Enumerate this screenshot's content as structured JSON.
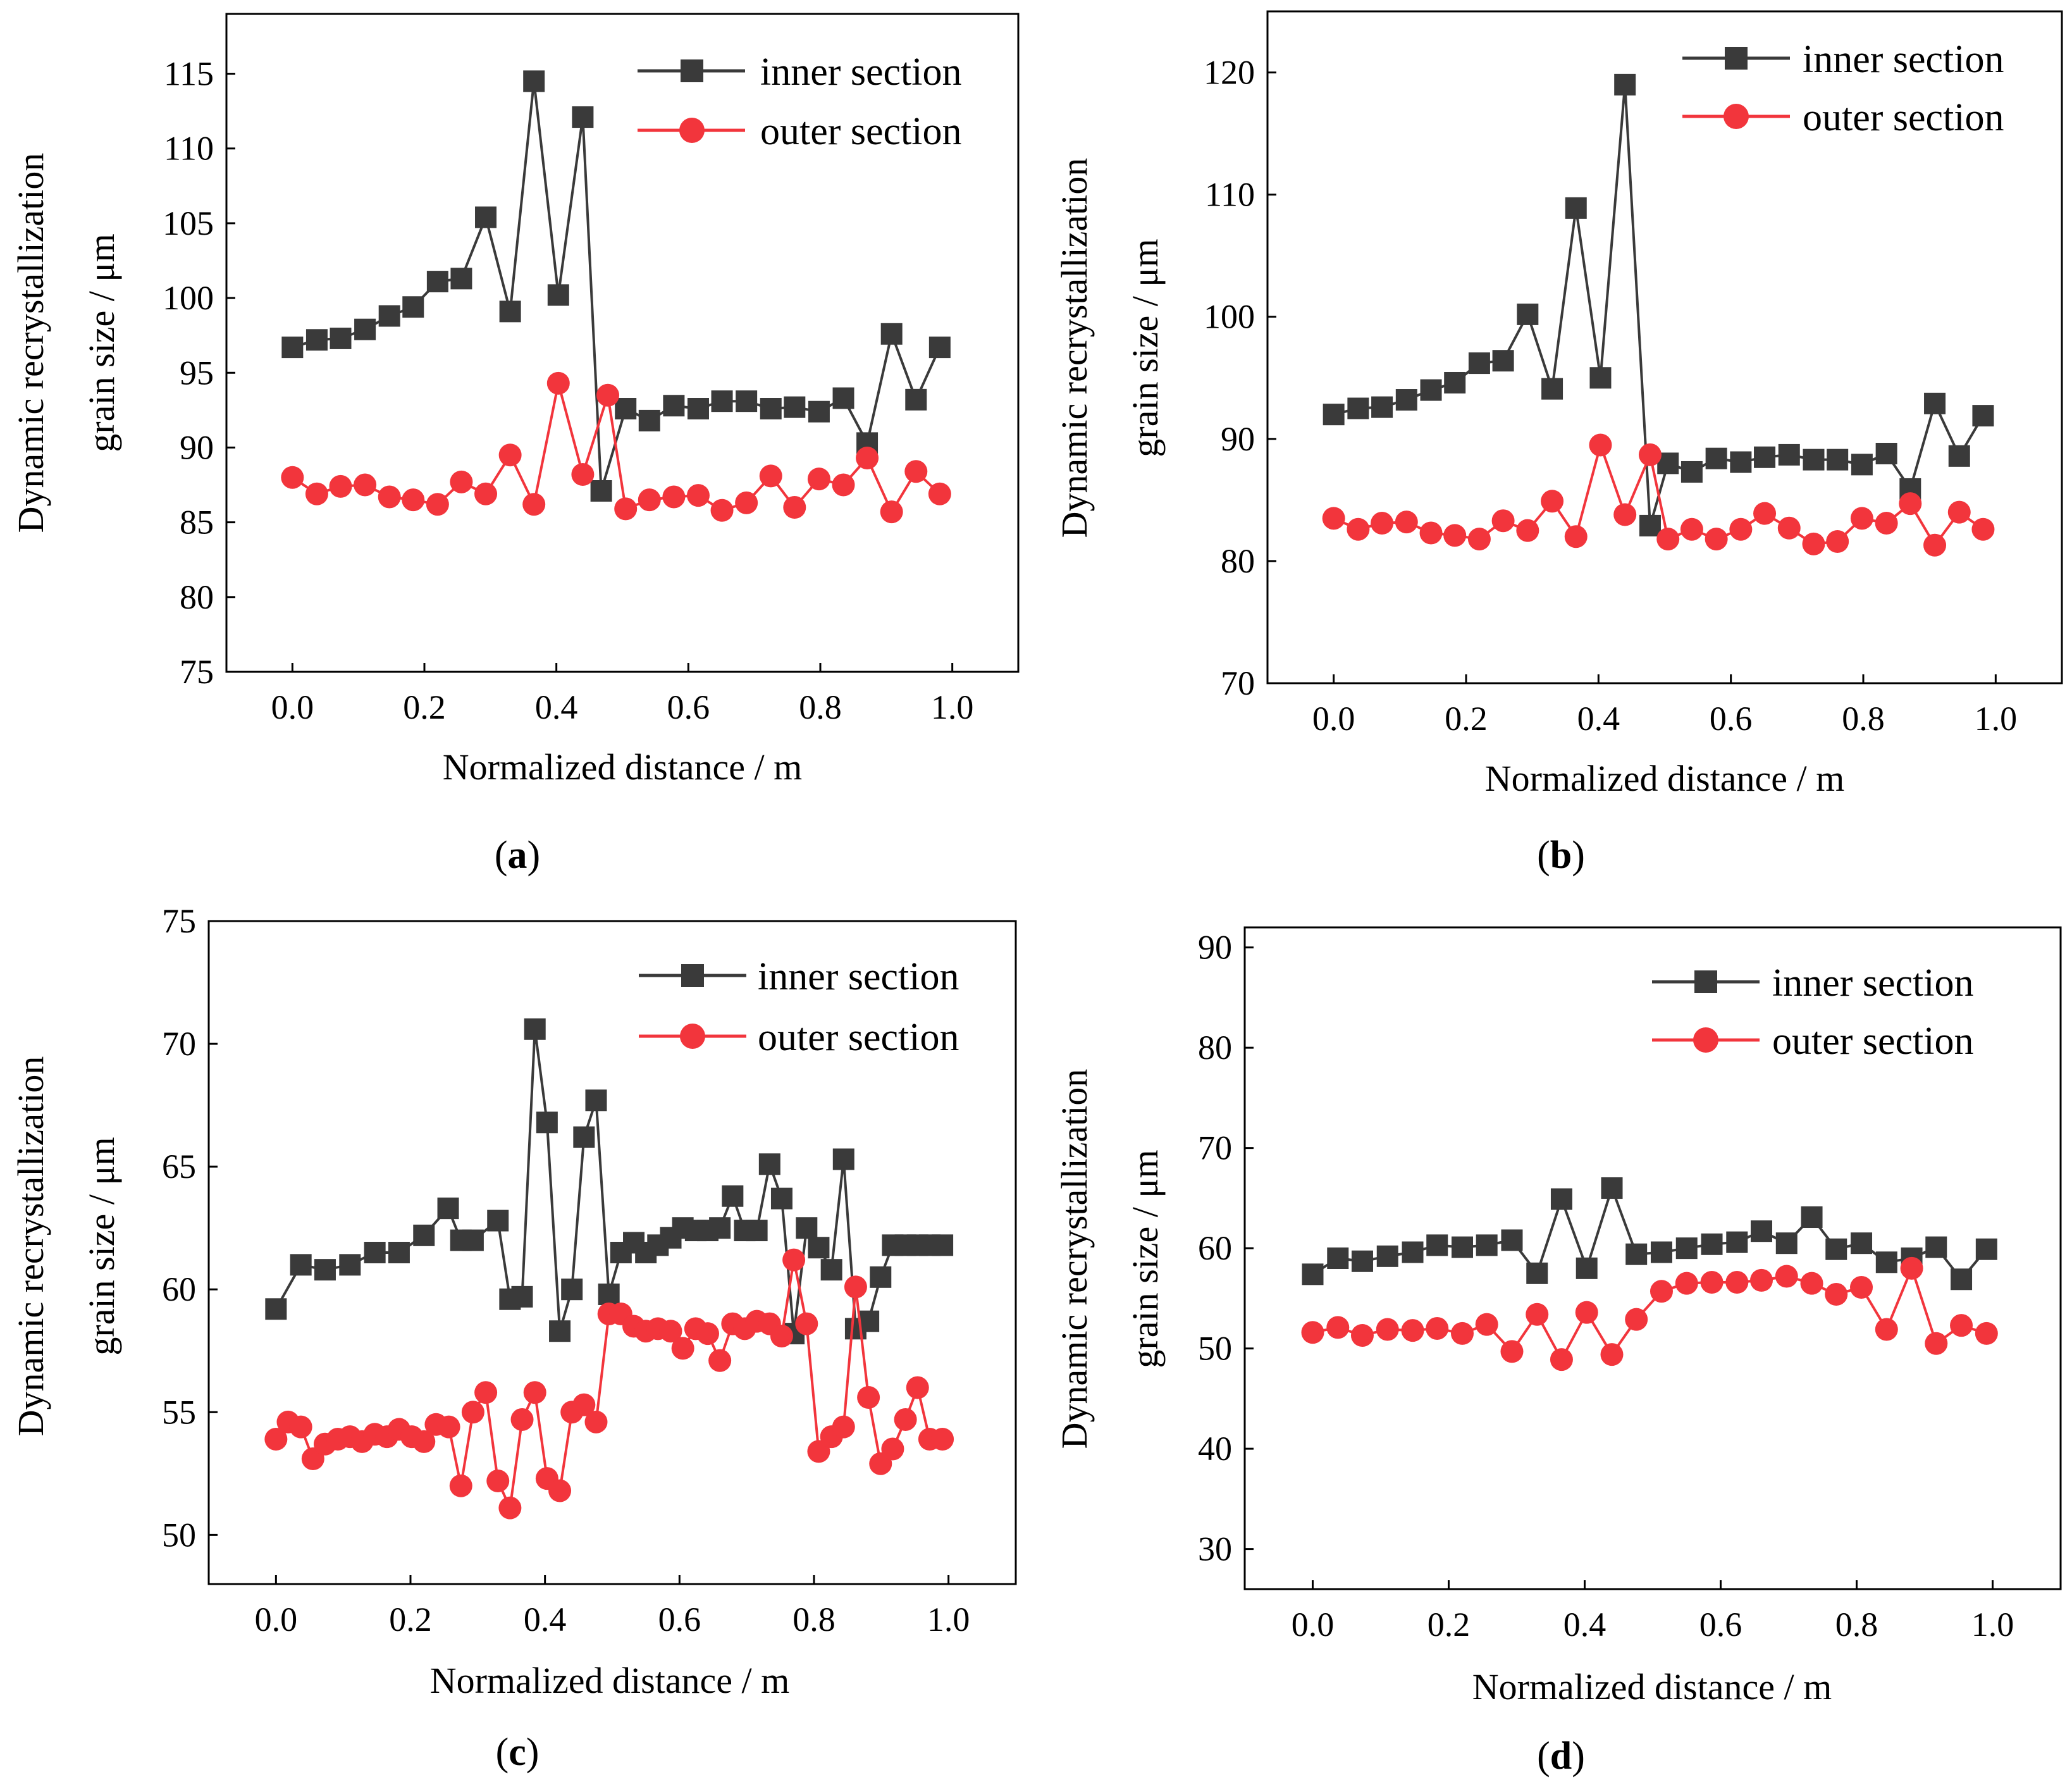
{
  "figure": {
    "colors": {
      "inner": "#3a3a3a",
      "outer": "#f2353c",
      "axis": "#000000"
    }
  },
  "chart_data": [
    {
      "panel_label": "(a)",
      "panel_letter": "a",
      "type": "line",
      "xlabel": "Normalized distance / m",
      "ylabel_line1": "Dynamic recrystallization",
      "ylabel_line2": "grain size / μm",
      "xlim": [
        -0.1,
        1.1
      ],
      "ylim": [
        75,
        119
      ],
      "xticks": [
        0.0,
        0.2,
        0.4,
        0.6,
        0.8,
        1.0
      ],
      "xtick_labels": [
        "0.0",
        "0.2",
        "0.4",
        "0.6",
        "0.8",
        "1.0"
      ],
      "yticks": [
        75,
        80,
        85,
        90,
        95,
        100,
        105,
        110,
        115
      ],
      "ytick_labels": [
        "75",
        "80",
        "85",
        "90",
        "95",
        "100",
        "105",
        "110",
        "115"
      ],
      "legend_position": "top-right",
      "series": [
        {
          "name": "inner section",
          "marker": "square",
          "x": [
            0.0,
            0.037,
            0.073,
            0.11,
            0.147,
            0.183,
            0.22,
            0.256,
            0.293,
            0.33,
            0.366,
            0.403,
            0.44,
            0.468,
            0.505,
            0.541,
            0.578,
            0.615,
            0.651,
            0.688,
            0.725,
            0.761,
            0.798,
            0.835,
            0.871,
            0.908,
            0.945,
            0.981
          ],
          "y": [
            96.7,
            97.2,
            97.3,
            97.9,
            98.8,
            99.4,
            101.1,
            101.3,
            105.4,
            99.1,
            114.5,
            100.2,
            112.1,
            87.1,
            92.6,
            91.8,
            92.8,
            92.6,
            93.1,
            93.1,
            92.6,
            92.7,
            92.4,
            93.3,
            90.3,
            97.6,
            93.2,
            96.7
          ]
        },
        {
          "name": "outer section",
          "marker": "circle",
          "x": [
            0.0,
            0.037,
            0.073,
            0.11,
            0.147,
            0.183,
            0.22,
            0.256,
            0.293,
            0.33,
            0.366,
            0.403,
            0.44,
            0.478,
            0.505,
            0.541,
            0.578,
            0.615,
            0.651,
            0.688,
            0.725,
            0.761,
            0.798,
            0.835,
            0.871,
            0.908,
            0.945,
            0.981
          ],
          "y": [
            88.0,
            86.9,
            87.4,
            87.5,
            86.7,
            86.5,
            86.2,
            87.7,
            86.9,
            89.5,
            86.2,
            94.3,
            88.2,
            93.5,
            85.9,
            86.5,
            86.7,
            86.8,
            85.8,
            86.3,
            88.1,
            86.0,
            87.9,
            87.5,
            89.3,
            85.7,
            88.4,
            86.9
          ]
        }
      ]
    },
    {
      "panel_label": "(b)",
      "panel_letter": "b",
      "type": "line",
      "xlabel": "Normalized distance / m",
      "ylabel_line1": "Dynamic recrystallization",
      "ylabel_line2": "grain size / μm",
      "xlim": [
        -0.1,
        1.1
      ],
      "ylim": [
        70,
        125
      ],
      "xticks": [
        0.0,
        0.2,
        0.4,
        0.6,
        0.8,
        1.0
      ],
      "xtick_labels": [
        "0.0",
        "0.2",
        "0.4",
        "0.6",
        "0.8",
        "1.0"
      ],
      "yticks": [
        70,
        80,
        90,
        100,
        110,
        120
      ],
      "ytick_labels": [
        "70",
        "80",
        "90",
        "100",
        "110",
        "120"
      ],
      "legend_position": "top-right",
      "series": [
        {
          "name": "inner section",
          "marker": "square",
          "x": [
            0.0,
            0.037,
            0.073,
            0.11,
            0.147,
            0.183,
            0.22,
            0.256,
            0.293,
            0.33,
            0.366,
            0.403,
            0.44,
            0.478,
            0.505,
            0.541,
            0.578,
            0.615,
            0.651,
            0.688,
            0.725,
            0.761,
            0.798,
            0.835,
            0.871,
            0.908,
            0.945,
            0.981
          ],
          "y": [
            92.0,
            92.5,
            92.6,
            93.2,
            94.0,
            94.6,
            96.2,
            96.4,
            100.2,
            94.1,
            108.9,
            95.0,
            119.0,
            82.9,
            88.0,
            87.3,
            88.4,
            88.1,
            88.5,
            88.7,
            88.3,
            88.3,
            87.9,
            88.8,
            85.9,
            92.9,
            88.6,
            91.9
          ]
        },
        {
          "name": "outer section",
          "marker": "circle",
          "x": [
            0.0,
            0.037,
            0.073,
            0.11,
            0.147,
            0.183,
            0.22,
            0.256,
            0.293,
            0.33,
            0.366,
            0.403,
            0.44,
            0.478,
            0.505,
            0.541,
            0.578,
            0.615,
            0.651,
            0.688,
            0.725,
            0.761,
            0.798,
            0.835,
            0.871,
            0.908,
            0.945,
            0.981
          ],
          "y": [
            83.5,
            82.6,
            83.1,
            83.2,
            82.3,
            82.1,
            81.8,
            83.3,
            82.5,
            84.9,
            82.0,
            89.5,
            83.8,
            88.7,
            81.8,
            82.6,
            81.8,
            82.6,
            83.9,
            82.7,
            81.4,
            81.6,
            83.5,
            83.1,
            84.7,
            81.3,
            84.0,
            82.6
          ]
        }
      ]
    },
    {
      "panel_label": "(c)",
      "panel_letter": "c",
      "type": "line",
      "xlabel": "Normalized distance / m",
      "ylabel_line1": "Dynamic recrystallization",
      "ylabel_line2": "grain size / μm",
      "xlim": [
        -0.1,
        1.1
      ],
      "ylim": [
        48,
        75
      ],
      "xticks": [
        0.0,
        0.2,
        0.4,
        0.6,
        0.8,
        1.0
      ],
      "xtick_labels": [
        "0.0",
        "0.2",
        "0.4",
        "0.6",
        "0.8",
        "1.0"
      ],
      "yticks": [
        50,
        55,
        60,
        65,
        70,
        75
      ],
      "ytick_labels": [
        "50",
        "55",
        "60",
        "65",
        "70",
        "75"
      ],
      "legend_position": "top-right",
      "series": [
        {
          "name": "inner section",
          "marker": "square",
          "x": [
            0.0,
            0.037,
            0.073,
            0.11,
            0.147,
            0.183,
            0.22,
            0.256,
            0.275,
            0.293,
            0.33,
            0.348,
            0.366,
            0.385,
            0.403,
            0.422,
            0.44,
            0.458,
            0.476,
            0.495,
            0.513,
            0.532,
            0.55,
            0.568,
            0.587,
            0.605,
            0.624,
            0.642,
            0.66,
            0.679,
            0.697,
            0.715,
            0.734,
            0.752,
            0.77,
            0.789,
            0.807,
            0.826,
            0.844,
            0.862,
            0.881,
            0.899,
            0.917,
            0.936,
            0.954,
            0.972,
            0.991
          ],
          "y": [
            59.2,
            61.0,
            60.8,
            61.0,
            61.5,
            61.5,
            62.2,
            63.3,
            62.0,
            62.0,
            62.8,
            59.6,
            59.7,
            70.6,
            66.8,
            58.3,
            60.0,
            66.2,
            67.7,
            59.8,
            61.5,
            61.9,
            61.5,
            61.8,
            62.1,
            62.5,
            62.4,
            62.4,
            62.5,
            63.8,
            62.4,
            62.4,
            65.1,
            63.7,
            58.2,
            62.5,
            61.7,
            60.8,
            65.3,
            58.4,
            58.7,
            60.5,
            61.8,
            61.8,
            61.8,
            61.8,
            61.8
          ]
        },
        {
          "name": "outer section",
          "marker": "circle",
          "x": [
            0.0,
            0.018,
            0.037,
            0.055,
            0.073,
            0.092,
            0.11,
            0.128,
            0.147,
            0.165,
            0.183,
            0.202,
            0.22,
            0.238,
            0.257,
            0.275,
            0.293,
            0.312,
            0.33,
            0.348,
            0.366,
            0.385,
            0.403,
            0.422,
            0.44,
            0.458,
            0.476,
            0.495,
            0.513,
            0.532,
            0.55,
            0.568,
            0.587,
            0.605,
            0.624,
            0.642,
            0.66,
            0.679,
            0.697,
            0.715,
            0.734,
            0.752,
            0.77,
            0.789,
            0.807,
            0.826,
            0.844,
            0.862,
            0.881,
            0.899,
            0.917,
            0.936,
            0.954,
            0.972,
            0.991
          ],
          "y": [
            53.9,
            54.6,
            54.4,
            53.1,
            53.7,
            53.9,
            54.0,
            53.8,
            54.1,
            54.0,
            54.3,
            54.0,
            53.8,
            54.5,
            54.4,
            52.0,
            55.0,
            55.8,
            52.2,
            51.1,
            54.7,
            55.8,
            52.3,
            51.8,
            55.0,
            55.3,
            54.6,
            59.0,
            59.0,
            58.5,
            58.3,
            58.4,
            58.3,
            57.6,
            58.4,
            58.2,
            57.1,
            58.6,
            58.4,
            58.7,
            58.6,
            58.1,
            61.2,
            58.6,
            53.4,
            54.0,
            54.4,
            60.1,
            55.6,
            52.9,
            53.5,
            54.7,
            56.0,
            53.9,
            53.9
          ]
        }
      ]
    },
    {
      "panel_label": "(d)",
      "panel_letter": "d",
      "type": "line",
      "xlabel": "Normalized distance / m",
      "ylabel_line1": "Dynamic recrystallization",
      "ylabel_line2": "grain size / μm",
      "xlim": [
        -0.1,
        1.1
      ],
      "ylim": [
        26,
        92
      ],
      "xticks": [
        0.0,
        0.2,
        0.4,
        0.6,
        0.8,
        1.0
      ],
      "xtick_labels": [
        "0.0",
        "0.2",
        "0.4",
        "0.6",
        "0.8",
        "1.0"
      ],
      "yticks": [
        30,
        40,
        50,
        60,
        70,
        80,
        90
      ],
      "ytick_labels": [
        "30",
        "40",
        "50",
        "60",
        "70",
        "80",
        "90"
      ],
      "legend_position": "top-right",
      "series": [
        {
          "name": "inner section",
          "marker": "square",
          "x": [
            0.0,
            0.037,
            0.073,
            0.11,
            0.147,
            0.183,
            0.22,
            0.256,
            0.293,
            0.33,
            0.366,
            0.403,
            0.44,
            0.476,
            0.513,
            0.55,
            0.587,
            0.624,
            0.66,
            0.697,
            0.734,
            0.77,
            0.807,
            0.844,
            0.881,
            0.917,
            0.954,
            0.991
          ],
          "y": [
            57.4,
            59.0,
            58.7,
            59.2,
            59.6,
            60.3,
            60.1,
            60.3,
            60.8,
            57.5,
            64.9,
            58.0,
            66.0,
            59.4,
            59.6,
            60.0,
            60.4,
            60.6,
            61.7,
            60.5,
            63.1,
            59.9,
            60.5,
            58.6,
            59.0,
            60.1,
            56.9,
            59.9
          ]
        },
        {
          "name": "outer section",
          "marker": "circle",
          "x": [
            0.0,
            0.037,
            0.073,
            0.11,
            0.147,
            0.183,
            0.22,
            0.256,
            0.293,
            0.33,
            0.366,
            0.403,
            0.44,
            0.476,
            0.513,
            0.55,
            0.587,
            0.624,
            0.66,
            0.697,
            0.734,
            0.77,
            0.807,
            0.844,
            0.881,
            0.917,
            0.954,
            0.991
          ],
          "y": [
            51.6,
            52.1,
            51.3,
            51.9,
            51.8,
            52.0,
            51.5,
            52.4,
            49.7,
            53.4,
            48.9,
            53.6,
            49.4,
            52.9,
            55.7,
            56.5,
            56.6,
            56.6,
            56.8,
            57.2,
            56.5,
            55.4,
            56.1,
            51.9,
            58.0,
            50.5,
            52.3,
            51.5
          ]
        }
      ]
    }
  ]
}
